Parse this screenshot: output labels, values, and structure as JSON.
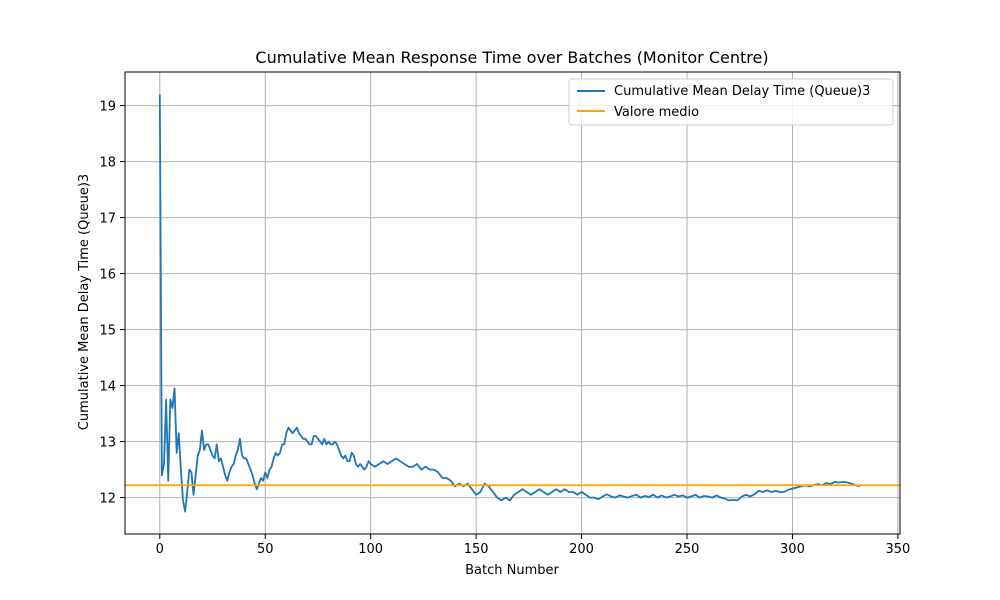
{
  "chart_data": {
    "type": "line",
    "title": "Cumulative Mean Response Time over Batches (Monitor Centre)",
    "xlabel": "Batch Number",
    "ylabel": "Cumulative Mean Delay Time (Queue)3",
    "xlim": [
      -16.5,
      351
    ],
    "ylim": [
      11.35,
      19.6
    ],
    "xticks": [
      0,
      50,
      100,
      150,
      200,
      250,
      300,
      350
    ],
    "yticks": [
      12,
      13,
      14,
      15,
      16,
      17,
      18,
      19
    ],
    "grid": true,
    "legend_position": "top-right",
    "legend": [
      "Cumulative Mean Delay Time (Queue)3",
      "Valore medio"
    ],
    "colors": {
      "series": "#1f77b4",
      "mean": "#ffa500"
    },
    "mean_value": 12.22,
    "series": [
      {
        "name": "Cumulative Mean Delay Time (Queue)3",
        "points": [
          [
            0,
            19.2
          ],
          [
            1,
            12.4
          ],
          [
            2,
            12.6
          ],
          [
            3,
            13.75
          ],
          [
            4,
            12.3
          ],
          [
            5,
            13.75
          ],
          [
            6,
            13.6
          ],
          [
            7,
            13.95
          ],
          [
            8,
            12.8
          ],
          [
            9,
            13.15
          ],
          [
            10,
            12.5
          ],
          [
            11,
            11.95
          ],
          [
            12,
            11.75
          ],
          [
            13,
            12.1
          ],
          [
            14,
            12.5
          ],
          [
            15,
            12.45
          ],
          [
            16,
            12.05
          ],
          [
            17,
            12.4
          ],
          [
            18,
            12.75
          ],
          [
            19,
            12.85
          ],
          [
            20,
            13.2
          ],
          [
            21,
            12.85
          ],
          [
            22,
            12.95
          ],
          [
            23,
            12.95
          ],
          [
            24,
            12.85
          ],
          [
            25,
            12.75
          ],
          [
            26,
            12.7
          ],
          [
            27,
            12.95
          ],
          [
            28,
            12.65
          ],
          [
            29,
            12.7
          ],
          [
            30,
            12.55
          ],
          [
            31,
            12.4
          ],
          [
            32,
            12.3
          ],
          [
            33,
            12.45
          ],
          [
            34,
            12.55
          ],
          [
            35,
            12.6
          ],
          [
            36,
            12.75
          ],
          [
            37,
            12.85
          ],
          [
            38,
            13.05
          ],
          [
            39,
            12.75
          ],
          [
            40,
            12.7
          ],
          [
            41,
            12.7
          ],
          [
            42,
            12.6
          ],
          [
            43,
            12.5
          ],
          [
            44,
            12.4
          ],
          [
            45,
            12.25
          ],
          [
            46,
            12.15
          ],
          [
            47,
            12.25
          ],
          [
            48,
            12.35
          ],
          [
            49,
            12.3
          ],
          [
            50,
            12.45
          ],
          [
            51,
            12.35
          ],
          [
            52,
            12.5
          ],
          [
            53,
            12.55
          ],
          [
            54,
            12.7
          ],
          [
            55,
            12.8
          ],
          [
            56,
            12.75
          ],
          [
            57,
            12.8
          ],
          [
            58,
            12.95
          ],
          [
            59,
            12.95
          ],
          [
            60,
            13.15
          ],
          [
            61,
            13.25
          ],
          [
            62,
            13.2
          ],
          [
            63,
            13.15
          ],
          [
            64,
            13.2
          ],
          [
            65,
            13.25
          ],
          [
            66,
            13.15
          ],
          [
            67,
            13.1
          ],
          [
            68,
            13.05
          ],
          [
            69,
            13.05
          ],
          [
            70,
            13.0
          ],
          [
            71,
            12.95
          ],
          [
            72,
            12.95
          ],
          [
            73,
            13.1
          ],
          [
            74,
            13.1
          ],
          [
            75,
            13.05
          ],
          [
            76,
            13.0
          ],
          [
            77,
            12.95
          ],
          [
            78,
            13.05
          ],
          [
            79,
            12.95
          ],
          [
            80,
            13.0
          ],
          [
            81,
            12.95
          ],
          [
            82,
            12.95
          ],
          [
            83,
            13.0
          ],
          [
            84,
            12.95
          ],
          [
            85,
            12.85
          ],
          [
            86,
            12.75
          ],
          [
            87,
            12.7
          ],
          [
            88,
            12.75
          ],
          [
            89,
            12.65
          ],
          [
            90,
            12.65
          ],
          [
            91,
            12.8
          ],
          [
            92,
            12.75
          ],
          [
            93,
            12.6
          ],
          [
            94,
            12.55
          ],
          [
            95,
            12.6
          ],
          [
            96,
            12.55
          ],
          [
            97,
            12.5
          ],
          [
            98,
            12.55
          ],
          [
            99,
            12.65
          ],
          [
            100,
            12.6
          ],
          [
            102,
            12.55
          ],
          [
            104,
            12.6
          ],
          [
            106,
            12.65
          ],
          [
            108,
            12.6
          ],
          [
            110,
            12.65
          ],
          [
            112,
            12.7
          ],
          [
            114,
            12.65
          ],
          [
            116,
            12.6
          ],
          [
            118,
            12.55
          ],
          [
            120,
            12.55
          ],
          [
            122,
            12.6
          ],
          [
            124,
            12.5
          ],
          [
            126,
            12.55
          ],
          [
            128,
            12.5
          ],
          [
            130,
            12.5
          ],
          [
            132,
            12.45
          ],
          [
            134,
            12.35
          ],
          [
            136,
            12.35
          ],
          [
            138,
            12.3
          ],
          [
            140,
            12.2
          ],
          [
            142,
            12.25
          ],
          [
            144,
            12.2
          ],
          [
            146,
            12.25
          ],
          [
            148,
            12.15
          ],
          [
            150,
            12.05
          ],
          [
            152,
            12.1
          ],
          [
            154,
            12.25
          ],
          [
            156,
            12.2
          ],
          [
            158,
            12.1
          ],
          [
            160,
            12.0
          ],
          [
            162,
            11.95
          ],
          [
            164,
            12.0
          ],
          [
            166,
            11.95
          ],
          [
            168,
            12.05
          ],
          [
            170,
            12.1
          ],
          [
            172,
            12.15
          ],
          [
            174,
            12.1
          ],
          [
            176,
            12.05
          ],
          [
            178,
            12.1
          ],
          [
            180,
            12.15
          ],
          [
            182,
            12.1
          ],
          [
            184,
            12.05
          ],
          [
            186,
            12.1
          ],
          [
            188,
            12.15
          ],
          [
            190,
            12.1
          ],
          [
            192,
            12.15
          ],
          [
            194,
            12.1
          ],
          [
            196,
            12.1
          ],
          [
            198,
            12.05
          ],
          [
            200,
            12.1
          ],
          [
            202,
            12.05
          ],
          [
            204,
            12.0
          ],
          [
            206,
            12.0
          ],
          [
            208,
            11.97
          ],
          [
            210,
            12.02
          ],
          [
            212,
            12.06
          ],
          [
            214,
            12.02
          ],
          [
            216,
            12.0
          ],
          [
            218,
            12.04
          ],
          [
            220,
            12.02
          ],
          [
            222,
            12.0
          ],
          [
            224,
            12.03
          ],
          [
            226,
            12.05
          ],
          [
            228,
            12.0
          ],
          [
            230,
            12.03
          ],
          [
            232,
            12.01
          ],
          [
            234,
            12.05
          ],
          [
            236,
            12.0
          ],
          [
            238,
            12.04
          ],
          [
            240,
            12.0
          ],
          [
            242,
            12.02
          ],
          [
            244,
            12.05
          ],
          [
            246,
            12.02
          ],
          [
            248,
            12.04
          ],
          [
            250,
            12.0
          ],
          [
            252,
            12.02
          ],
          [
            254,
            12.05
          ],
          [
            256,
            12.0
          ],
          [
            258,
            12.03
          ],
          [
            260,
            12.02
          ],
          [
            262,
            12.0
          ],
          [
            264,
            12.04
          ],
          [
            266,
            12.0
          ],
          [
            268,
            11.98
          ],
          [
            270,
            11.95
          ],
          [
            272,
            11.96
          ],
          [
            274,
            11.95
          ],
          [
            276,
            12.02
          ],
          [
            278,
            12.05
          ],
          [
            280,
            12.02
          ],
          [
            282,
            12.06
          ],
          [
            284,
            12.12
          ],
          [
            286,
            12.1
          ],
          [
            288,
            12.13
          ],
          [
            290,
            12.1
          ],
          [
            292,
            12.12
          ],
          [
            294,
            12.1
          ],
          [
            296,
            12.1
          ],
          [
            298,
            12.14
          ],
          [
            300,
            12.16
          ],
          [
            302,
            12.18
          ],
          [
            304,
            12.2
          ],
          [
            306,
            12.22
          ],
          [
            308,
            12.2
          ],
          [
            310,
            12.22
          ],
          [
            312,
            12.24
          ],
          [
            314,
            12.22
          ],
          [
            316,
            12.26
          ],
          [
            318,
            12.24
          ],
          [
            320,
            12.28
          ],
          [
            322,
            12.27
          ],
          [
            324,
            12.28
          ],
          [
            326,
            12.27
          ],
          [
            328,
            12.25
          ],
          [
            330,
            12.22
          ],
          [
            332,
            12.2
          ]
        ]
      },
      {
        "name": "Valore medio",
        "points": [
          [
            -16.5,
            12.22
          ],
          [
            351,
            12.22
          ]
        ]
      }
    ]
  }
}
